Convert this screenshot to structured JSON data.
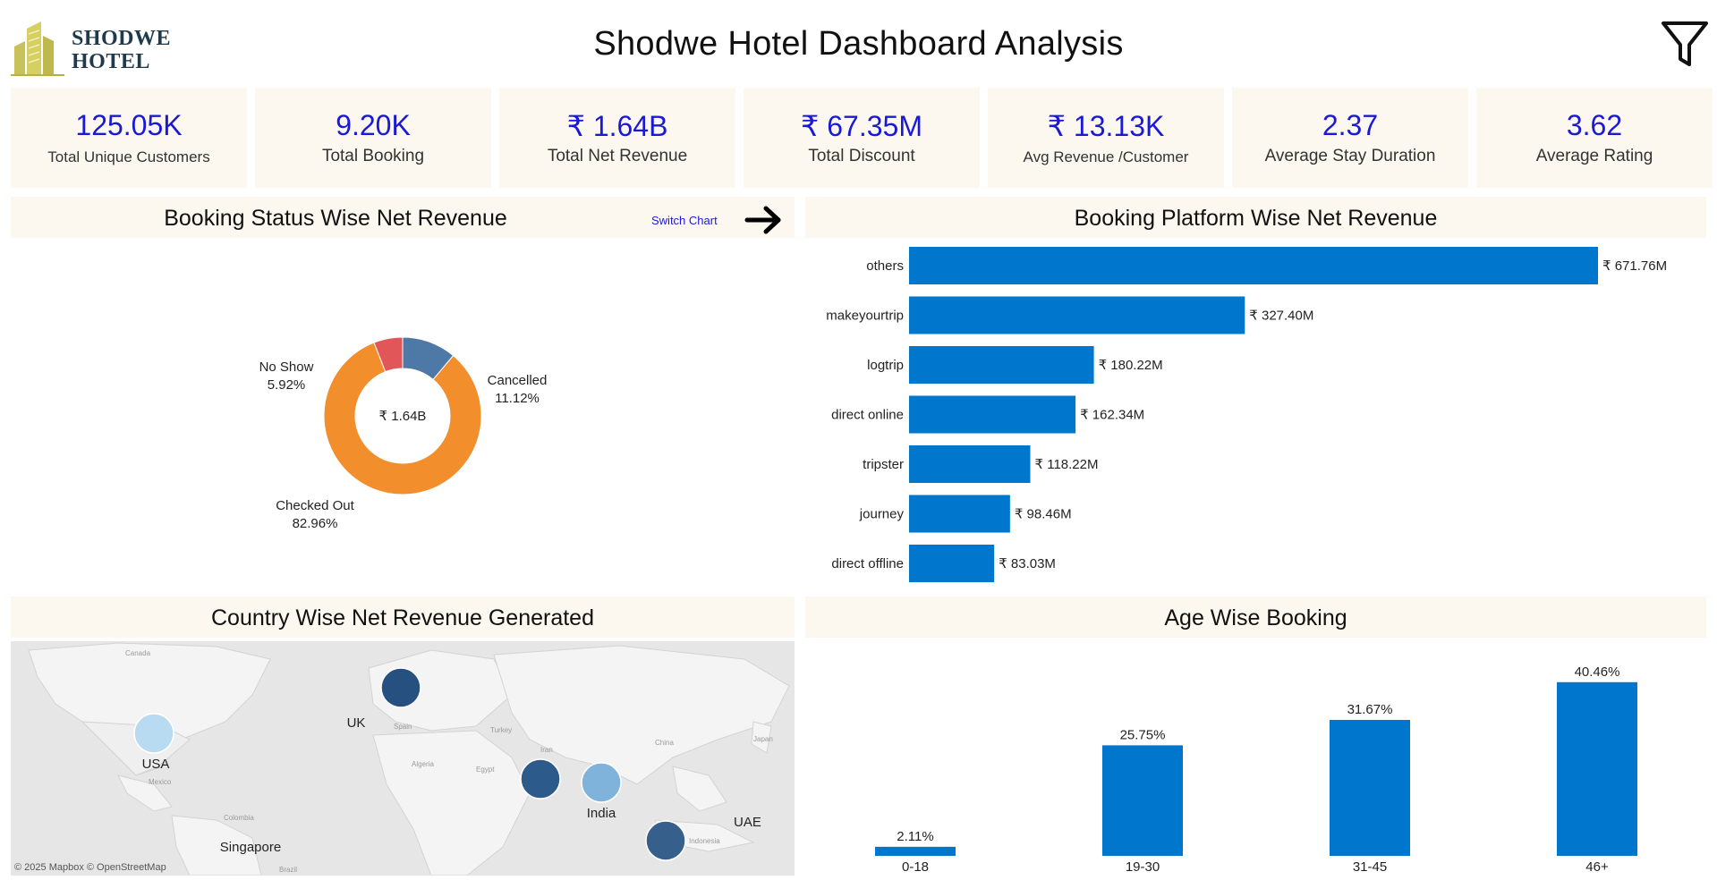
{
  "header": {
    "title": "Shodwe Hotel Dashboard Analysis",
    "logo_line1": "SHODWE",
    "logo_line2": "HOTEL",
    "filter_icon": "filter-icon"
  },
  "kpis": [
    {
      "value": "125.05K",
      "label": "Total Unique Customers"
    },
    {
      "value": "9.20K",
      "label": "Total Booking"
    },
    {
      "value": "₹ 1.64B",
      "label": "Total Net Revenue"
    },
    {
      "value": "₹ 67.35M",
      "label": "Total Discount"
    },
    {
      "value": "₹ 13.13K",
      "label": "Avg Revenue /Customer"
    },
    {
      "value": "2.37",
      "label": "Average Stay Duration"
    },
    {
      "value": "3.62",
      "label": "Average Rating"
    }
  ],
  "sections": {
    "status": "Booking Status Wise Net Revenue",
    "platform": "Booking Platform Wise Net Revenue",
    "country": "Country Wise Net Revenue Generated",
    "age": "Age Wise Booking",
    "switch_chart": "Switch Chart",
    "switch_icon": "arrow-right-icon"
  },
  "colors": {
    "accent_blue": "#0077cc",
    "kpi_value": "#1a1ad6",
    "panel_bg": "#fcf8f0",
    "donut_checked_out": "#f28e2b",
    "donut_cancelled": "#4e79a7",
    "donut_no_show": "#e15759"
  },
  "map": {
    "attribution": "© 2025 Mapbox © OpenStreetMap",
    "background_labels": [
      "Canada",
      "Mexico",
      "Colombia",
      "Brazil",
      "Spain",
      "Algeria",
      "Egypt",
      "Iran",
      "Turkey",
      "China",
      "Japan",
      "Indonesia"
    ],
    "points": [
      {
        "label": "USA",
        "color": "#b9dbf2"
      },
      {
        "label": "UK",
        "color": "#26507f"
      },
      {
        "label": "UAE",
        "color": "#2c5a8a"
      },
      {
        "label": "India",
        "color": "#7fb3dc"
      },
      {
        "label": "Singapore",
        "color": "#365f8c"
      }
    ]
  },
  "chart_data": [
    {
      "type": "pie",
      "title": "Booking Status Wise Net Revenue",
      "center_label": "₹ 1.64B",
      "slices": [
        {
          "name": "Cancelled",
          "value": 11.12,
          "label": "11.12%"
        },
        {
          "name": "Checked Out",
          "value": 82.96,
          "label": "82.96%"
        },
        {
          "name": "No Show",
          "value": 5.92,
          "label": "5.92%"
        }
      ]
    },
    {
      "type": "bar",
      "orientation": "horizontal",
      "title": "Booking Platform Wise Net Revenue",
      "categories": [
        "others",
        "makeyourtrip",
        "logtrip",
        "direct online",
        "tripster",
        "journey",
        "direct offline"
      ],
      "values": [
        671.76,
        327.4,
        180.22,
        162.34,
        118.22,
        98.46,
        83.03
      ],
      "labels": [
        "₹ 671.76M",
        "₹ 327.40M",
        "₹ 180.22M",
        "₹ 162.34M",
        "₹ 118.22M",
        "₹ 98.46M",
        "₹ 83.03M"
      ],
      "unit": "M"
    },
    {
      "type": "bar",
      "title": "Age Wise Booking",
      "categories": [
        "0-18",
        "19-30",
        "31-45",
        "46+"
      ],
      "values": [
        2.11,
        25.75,
        31.67,
        40.46
      ],
      "labels": [
        "2.11%",
        "25.75%",
        "31.67%",
        "40.46%"
      ],
      "ylim": [
        0,
        45
      ]
    }
  ]
}
